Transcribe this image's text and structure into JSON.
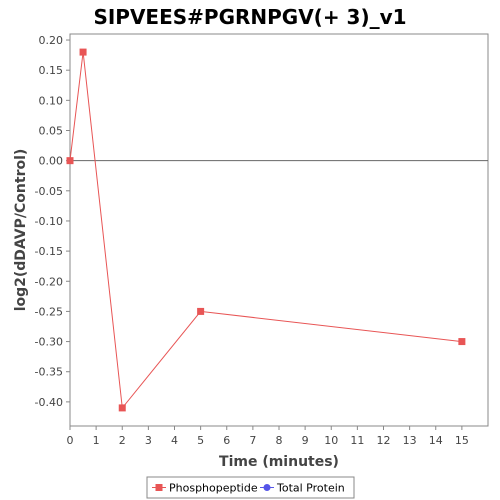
{
  "chart_data": {
    "type": "line",
    "title": "SIPVEES#PGRNPGV(+ 3)_v1",
    "xlabel": "Time (minutes)",
    "ylabel": "log2(dDAVP/Control)",
    "xlim": [
      0,
      16
    ],
    "ylim": [
      -0.44,
      0.21
    ],
    "xticks": [
      0,
      1,
      2,
      3,
      4,
      5,
      6,
      7,
      8,
      9,
      10,
      11,
      12,
      13,
      14,
      15
    ],
    "yticks": [
      0.2,
      0.15,
      0.1,
      0.05,
      0.0,
      -0.05,
      -0.1,
      -0.15,
      -0.2,
      -0.25,
      -0.3,
      -0.35,
      -0.4
    ],
    "ytick_labels": [
      "0.20",
      "0.15",
      "0.10",
      "0.05",
      "0.00",
      "-0.05",
      "-0.10",
      "-0.15",
      "-0.20",
      "-0.25",
      "-0.30",
      "-0.35",
      "-0.40"
    ],
    "zero_line": 0,
    "grid": false,
    "legend_position": "bottom-center",
    "series": [
      {
        "name": "Phosphopeptide",
        "color": "#e85555",
        "marker": "square",
        "x": [
          0,
          0.5,
          2,
          5,
          15
        ],
        "y": [
          0.0,
          0.18,
          -0.41,
          -0.25,
          -0.3
        ]
      },
      {
        "name": "Total Protein",
        "color": "#5555e8",
        "marker": "circle",
        "x": [],
        "y": []
      }
    ]
  }
}
